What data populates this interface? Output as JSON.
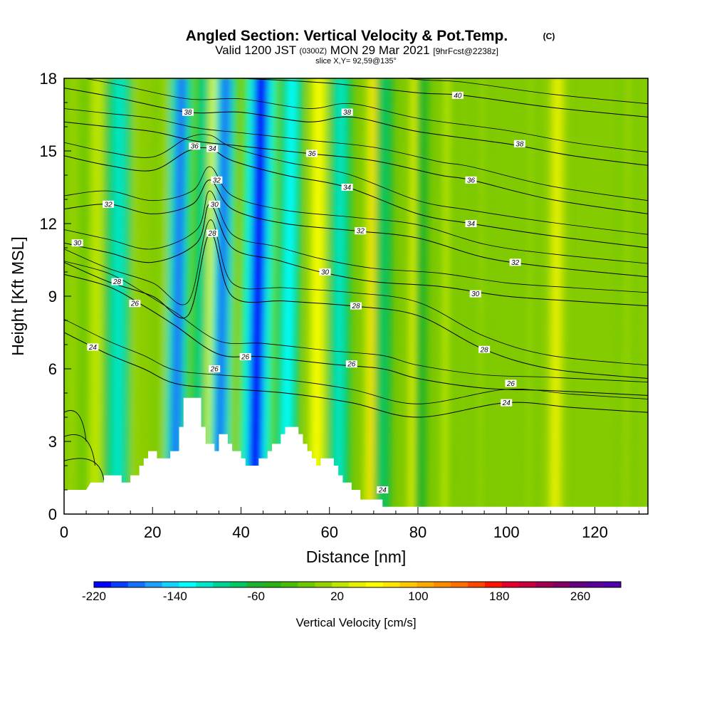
{
  "header": {
    "title": "Angled Section: Vertical Velocity & Pot.Temp.",
    "copyright": "(C)",
    "valid_prefix": "Valid 1200 JST",
    "valid_utc": "(0300Z)",
    "valid_date": "MON 29 Mar 2021",
    "forecast": "[9hrFcst@2238z]",
    "slice": "slice X,Y= 92,59@135°"
  },
  "chart_data": {
    "type": "heatmap",
    "xlabel": "Distance [nm]",
    "ylabel": "Height [Kft MSL]",
    "xlim": [
      0,
      132
    ],
    "ylim": [
      0,
      18
    ],
    "x_ticks": [
      0,
      20,
      40,
      60,
      80,
      100,
      120
    ],
    "y_ticks": [
      0,
      3,
      6,
      9,
      12,
      15,
      18
    ],
    "colorbar": {
      "label": "Vertical Velocity [cm/s]",
      "min": -220,
      "max": 300,
      "step": 20,
      "tick_labels": [
        -220,
        -140,
        -60,
        20,
        100,
        180,
        260
      ],
      "colors": [
        "#0000ff",
        "#0a3cff",
        "#1470ff",
        "#1ea0ff",
        "#14d2ff",
        "#00ffff",
        "#00e6c8",
        "#00d296",
        "#00c864",
        "#1eb432",
        "#28b414",
        "#46be0a",
        "#6ec800",
        "#96d200",
        "#bee600",
        "#e6f000",
        "#ffff00",
        "#ffe600",
        "#ffc800",
        "#ffaa00",
        "#ff8c00",
        "#ff6e00",
        "#ff4600",
        "#ff1400",
        "#e6002d",
        "#c8003c",
        "#a00050",
        "#800064",
        "#640082",
        "#5a009b",
        "#4b00aa"
      ]
    },
    "updraft_columns": [
      {
        "x": 1.5,
        "w": 2.5,
        "v": 40
      },
      {
        "x": 7,
        "w": 3,
        "v": 70
      },
      {
        "x": 14,
        "w": 2.5,
        "v": 90
      },
      {
        "x": 22,
        "w": 2,
        "v": 40
      },
      {
        "x": 33,
        "w": 1.8,
        "v": 110
      },
      {
        "x": 37,
        "w": 1.5,
        "v": 100
      },
      {
        "x": 57,
        "w": 2.2,
        "v": 110
      },
      {
        "x": 69.5,
        "w": 2,
        "v": 120
      },
      {
        "x": 79,
        "w": 1.8,
        "v": 100
      },
      {
        "x": 86,
        "w": 1.5,
        "v": 60
      },
      {
        "x": 94,
        "w": 1.5,
        "v": 40
      },
      {
        "x": 105,
        "w": 1.5,
        "v": 40
      },
      {
        "x": 111,
        "w": 2.5,
        "v": 90
      },
      {
        "x": 127,
        "w": 2,
        "v": 40
      }
    ],
    "downdraft_columns": [
      {
        "x": 12,
        "w": 3,
        "v": -90
      },
      {
        "x": 25,
        "w": 2.5,
        "v": -170
      },
      {
        "x": 30,
        "w": 1.5,
        "v": -80
      },
      {
        "x": 35,
        "w": 2.5,
        "v": -180
      },
      {
        "x": 43,
        "w": 3.5,
        "v": -210
      },
      {
        "x": 50,
        "w": 2.5,
        "v": -110
      },
      {
        "x": 62,
        "w": 2.5,
        "v": -90
      },
      {
        "x": 72,
        "w": 2,
        "v": -60
      },
      {
        "x": 80.5,
        "w": 1.5,
        "v": -30
      }
    ],
    "isentropes": [
      {
        "theta": 24,
        "points": [
          [
            0,
            7.5
          ],
          [
            10,
            6.6
          ],
          [
            18,
            6.0
          ],
          [
            25,
            5.4
          ],
          [
            35,
            5.2
          ],
          [
            50,
            5.0
          ],
          [
            65,
            4.6
          ],
          [
            80,
            4.0
          ],
          [
            100,
            4.6
          ],
          [
            115,
            4.4
          ],
          [
            132,
            4.2
          ]
        ]
      },
      {
        "theta": 26,
        "points": [
          [
            0,
            9.9
          ],
          [
            10,
            9.4
          ],
          [
            18,
            8.6
          ],
          [
            25,
            7.8
          ],
          [
            35,
            6.6
          ],
          [
            45,
            6.5
          ],
          [
            60,
            6.2
          ],
          [
            72,
            6.0
          ],
          [
            80,
            5.6
          ],
          [
            95,
            5.2
          ],
          [
            110,
            5.1
          ],
          [
            132,
            4.9
          ]
        ]
      },
      {
        "theta": 28,
        "points": [
          [
            0,
            10.4
          ],
          [
            10,
            9.6
          ],
          [
            20,
            9.0
          ],
          [
            28,
            8.2
          ],
          [
            33,
            11.6
          ],
          [
            38,
            9.0
          ],
          [
            50,
            8.8
          ],
          [
            65,
            8.6
          ],
          [
            80,
            8.2
          ],
          [
            95,
            6.8
          ],
          [
            110,
            6.0
          ],
          [
            132,
            5.6
          ]
        ]
      },
      {
        "theta": 30,
        "points": [
          [
            0,
            11.2
          ],
          [
            10,
            10.8
          ],
          [
            20,
            10.4
          ],
          [
            30,
            11.2
          ],
          [
            33,
            12.8
          ],
          [
            38,
            11.0
          ],
          [
            48,
            10.5
          ],
          [
            58,
            10.0
          ],
          [
            70,
            9.6
          ],
          [
            85,
            9.4
          ],
          [
            100,
            9.0
          ],
          [
            115,
            8.8
          ],
          [
            132,
            8.6
          ]
        ]
      },
      {
        "theta": 32,
        "points": [
          [
            0,
            12.6
          ],
          [
            10,
            12.8
          ],
          [
            20,
            12.4
          ],
          [
            29,
            12.8
          ],
          [
            33,
            13.8
          ],
          [
            38,
            12.6
          ],
          [
            50,
            12.0
          ],
          [
            66,
            11.7
          ],
          [
            80,
            11.4
          ],
          [
            95,
            10.6
          ],
          [
            110,
            10.2
          ],
          [
            132,
            9.8
          ]
        ]
      },
      {
        "theta": 34,
        "points": [
          [
            0,
            14.8
          ],
          [
            10,
            14.4
          ],
          [
            20,
            14.2
          ],
          [
            28,
            15.0
          ],
          [
            33,
            15.1
          ],
          [
            38,
            14.6
          ],
          [
            50,
            14.0
          ],
          [
            64,
            13.5
          ],
          [
            80,
            12.4
          ],
          [
            92,
            12.0
          ],
          [
            110,
            11.5
          ],
          [
            132,
            11.0
          ]
        ]
      },
      {
        "theta": 36,
        "points": [
          [
            0,
            16.2
          ],
          [
            10,
            16.0
          ],
          [
            20,
            15.8
          ],
          [
            30,
            15.4
          ],
          [
            40,
            15.2
          ],
          [
            55,
            14.9
          ],
          [
            70,
            14.6
          ],
          [
            85,
            14.0
          ],
          [
            92,
            13.8
          ],
          [
            110,
            13.0
          ],
          [
            132,
            12.4
          ]
        ]
      },
      {
        "theta": 38,
        "points": [
          [
            0,
            17.6
          ],
          [
            12,
            17.2
          ],
          [
            28,
            16.6
          ],
          [
            40,
            16.6
          ],
          [
            55,
            16.2
          ],
          [
            65,
            16.4
          ],
          [
            80,
            15.8
          ],
          [
            100,
            15.3
          ],
          [
            115,
            14.8
          ],
          [
            132,
            14.4
          ]
        ]
      },
      {
        "theta": 40,
        "points": [
          [
            40,
            18.0
          ],
          [
            60,
            17.8
          ],
          [
            80,
            17.4
          ],
          [
            90,
            17.3
          ],
          [
            110,
            16.8
          ],
          [
            132,
            16.4
          ]
        ]
      }
    ],
    "contour_labels": [
      {
        "text": "38",
        "x": 28,
        "y": 16.6
      },
      {
        "text": "36",
        "x": 29.5,
        "y": 15.2
      },
      {
        "text": "34",
        "x": 33.5,
        "y": 15.1
      },
      {
        "text": "38",
        "x": 64,
        "y": 16.6
      },
      {
        "text": "40",
        "x": 89,
        "y": 17.3
      },
      {
        "text": "36",
        "x": 56,
        "y": 14.9
      },
      {
        "text": "38",
        "x": 103,
        "y": 15.3
      },
      {
        "text": "36",
        "x": 92,
        "y": 13.8
      },
      {
        "text": "34",
        "x": 64,
        "y": 13.5
      },
      {
        "text": "32",
        "x": 34.5,
        "y": 13.8
      },
      {
        "text": "30",
        "x": 34,
        "y": 12.8
      },
      {
        "text": "28",
        "x": 33.5,
        "y": 11.6
      },
      {
        "text": "32",
        "x": 10,
        "y": 12.8
      },
      {
        "text": "30",
        "x": 3,
        "y": 11.2
      },
      {
        "text": "34",
        "x": 92,
        "y": 12.0
      },
      {
        "text": "32",
        "x": 67,
        "y": 11.7
      },
      {
        "text": "32",
        "x": 102,
        "y": 10.4
      },
      {
        "text": "30",
        "x": 59,
        "y": 10.0
      },
      {
        "text": "28",
        "x": 12,
        "y": 9.6
      },
      {
        "text": "30",
        "x": 93,
        "y": 9.1
      },
      {
        "text": "26",
        "x": 16,
        "y": 8.7
      },
      {
        "text": "28",
        "x": 66,
        "y": 8.6
      },
      {
        "text": "24",
        "x": 6.5,
        "y": 6.9
      },
      {
        "text": "28",
        "x": 95,
        "y": 6.8
      },
      {
        "text": "26",
        "x": 34,
        "y": 6.0
      },
      {
        "text": "26",
        "x": 41,
        "y": 6.5
      },
      {
        "text": "26",
        "x": 65,
        "y": 6.2
      },
      {
        "text": "26",
        "x": 101,
        "y": 5.4
      },
      {
        "text": "24",
        "x": 100,
        "y": 4.6
      },
      {
        "text": "24",
        "x": 72,
        "y": 1.0
      }
    ],
    "terrain": [
      [
        0,
        1.0
      ],
      [
        5,
        1.0
      ],
      [
        6,
        1.3
      ],
      [
        9,
        1.3
      ],
      [
        9,
        1.6
      ],
      [
        13,
        1.6
      ],
      [
        13,
        1.3
      ],
      [
        15,
        1.3
      ],
      [
        15,
        1.6
      ],
      [
        17,
        1.6
      ],
      [
        17,
        2.0
      ],
      [
        18,
        2.0
      ],
      [
        18,
        2.3
      ],
      [
        19,
        2.3
      ],
      [
        19,
        2.6
      ],
      [
        21,
        2.6
      ],
      [
        21,
        2.3
      ],
      [
        24,
        2.3
      ],
      [
        24,
        2.6
      ],
      [
        26,
        2.6
      ],
      [
        26,
        3.6
      ],
      [
        27,
        3.6
      ],
      [
        27,
        4.8
      ],
      [
        31,
        4.8
      ],
      [
        31,
        3.6
      ],
      [
        32,
        3.6
      ],
      [
        32,
        2.9
      ],
      [
        34,
        2.9
      ],
      [
        34,
        2.6
      ],
      [
        35,
        2.6
      ],
      [
        35,
        3.3
      ],
      [
        37,
        3.3
      ],
      [
        37,
        2.9
      ],
      [
        38,
        2.9
      ],
      [
        38,
        2.6
      ],
      [
        40,
        2.6
      ],
      [
        40,
        2.3
      ],
      [
        41,
        2.3
      ],
      [
        41,
        2.0
      ],
      [
        44,
        2.0
      ],
      [
        44,
        2.3
      ],
      [
        46,
        2.3
      ],
      [
        46,
        2.6
      ],
      [
        47,
        2.6
      ],
      [
        47,
        2.9
      ],
      [
        49,
        2.9
      ],
      [
        49,
        3.3
      ],
      [
        50,
        3.3
      ],
      [
        50,
        3.6
      ],
      [
        53,
        3.6
      ],
      [
        53,
        3.3
      ],
      [
        54,
        3.3
      ],
      [
        54,
        2.9
      ],
      [
        55,
        2.9
      ],
      [
        55,
        2.6
      ],
      [
        56,
        2.6
      ],
      [
        56,
        2.3
      ],
      [
        57,
        2.3
      ],
      [
        57,
        2.0
      ],
      [
        58,
        2.0
      ],
      [
        58,
        2.3
      ],
      [
        61,
        2.3
      ],
      [
        61,
        2.0
      ],
      [
        62,
        2.0
      ],
      [
        62,
        1.6
      ],
      [
        63,
        1.6
      ],
      [
        63,
        1.3
      ],
      [
        65,
        1.3
      ],
      [
        65,
        1.0
      ],
      [
        67,
        1.0
      ],
      [
        67,
        0.6
      ],
      [
        72,
        0.6
      ],
      [
        72,
        0.3
      ],
      [
        132,
        0.3
      ],
      [
        132,
        0
      ]
    ]
  }
}
